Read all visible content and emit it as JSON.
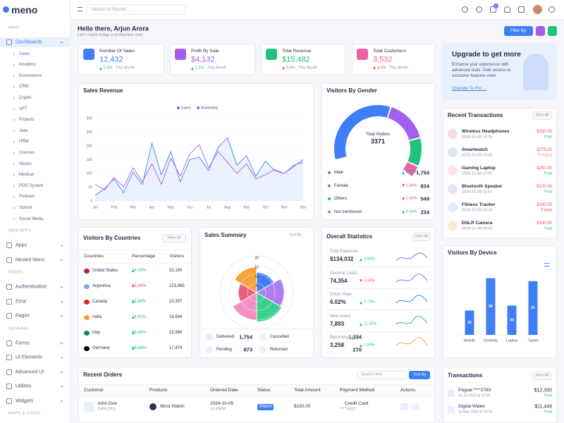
{
  "sidebar": {
    "logo": "meno",
    "sections": [
      {
        "label": "MAIN",
        "items": [
          "Dashboards"
        ],
        "subitems": [
          "Sales",
          "Analytics",
          "Ecommerce",
          "CRM",
          "Crypto",
          "NFT",
          "Projects",
          "Jobs",
          "HRM",
          "Courses",
          "Stocks",
          "Medical",
          "POS System",
          "Podcast",
          "School",
          "Social Media"
        ]
      },
      {
        "label": "WEB APPS",
        "items": [
          "Apps",
          "Nested Menu"
        ]
      },
      {
        "label": "PAGES",
        "items": [
          "Authentication",
          "Error",
          "Pages"
        ]
      },
      {
        "label": "GENERAL",
        "items": [
          "Forms",
          "UI Elements",
          "Advanced UI",
          "Utilities",
          "Widgets"
        ]
      },
      {
        "label": "MAPS & ICONS",
        "items": []
      }
    ]
  },
  "header": {
    "search_placeholder": "Search for Results...",
    "badge": 4
  },
  "welcome": {
    "title": "Hello there, Arjun Arora",
    "subtitle": "Let's make today a productive one!",
    "filter": "Filter By"
  },
  "stats": [
    {
      "label": "Number Of Sales",
      "value": "12,432",
      "change": "2.5%",
      "trend": "up",
      "period": "This Month",
      "color": "#3f7ff6"
    },
    {
      "label": "Profit By Sale",
      "value": "$4,132",
      "change": "1.5%",
      "trend": "up",
      "period": "This Month",
      "color": "#a45ef2"
    },
    {
      "label": "Total Revenue",
      "value": "$15,482",
      "change": "3.4%",
      "trend": "down",
      "period": "This Month",
      "color": "#21c27d"
    },
    {
      "label": "Total Customers",
      "value": "3,532",
      "change": "4.5%",
      "trend": "down",
      "period": "This Month",
      "color": "#ef5fa4"
    }
  ],
  "upgrade": {
    "title": "Upgrade to get more",
    "text": "Enhance your experience with advanced tools. Gain access to exclusive features now!",
    "link": "Upgrade To Pro →"
  },
  "chart_data": [
    {
      "type": "line",
      "title": "Sales Revenue",
      "x": [
        0,
        0.5,
        1,
        1.5,
        2,
        2.5,
        3,
        3.5,
        4,
        4.5,
        5,
        5.5,
        6,
        6.5,
        7,
        7.5,
        8,
        8.5,
        9,
        9.5,
        10,
        10.5,
        11
      ],
      "series": [
        {
          "name": "Sales",
          "color": "#3f7ff6",
          "fill": true,
          "values": [
            20,
            45,
            80,
            30,
            105,
            60,
            210,
            95,
            180,
            70,
            150,
            160,
            110,
            195,
            230,
            130,
            165,
            90,
            145,
            110,
            100,
            125,
            150
          ]
        },
        {
          "name": "Marketing",
          "color": "#a45ef2",
          "values": [
            60,
            40,
            85,
            50,
            120,
            70,
            135,
            60,
            155,
            90,
            170,
            205,
            120,
            180,
            140,
            100,
            135,
            80,
            95,
            115,
            100,
            130,
            140
          ]
        }
      ],
      "xlim": [
        0,
        11
      ],
      "xticks": [
        {
          "value": 0,
          "label": "Jan"
        },
        {
          "value": 1,
          "label": "Feb"
        },
        {
          "value": 2,
          "label": "Mar"
        },
        {
          "value": 3,
          "label": "Apr"
        },
        {
          "value": 4,
          "label": "May"
        },
        {
          "value": 5,
          "label": "Jun"
        },
        {
          "value": 6,
          "label": "Jul"
        },
        {
          "value": 7,
          "label": "Aug"
        },
        {
          "value": 8,
          "label": "Sep"
        },
        {
          "value": 9,
          "label": "Oct"
        },
        {
          "value": 10,
          "label": "Nov"
        },
        {
          "value": 11,
          "label": "Dec"
        }
      ],
      "ylim": [
        0,
        300
      ],
      "yticks": [
        0,
        50,
        100,
        150,
        200,
        250,
        300
      ],
      "grid": true
    },
    {
      "type": "donut",
      "title": "Visitors By Gender",
      "center_label": "Total Visitors",
      "total": 3371,
      "categories": [
        "Male",
        "Female",
        "Others",
        "Not mentioned"
      ],
      "values": [
        1754,
        834,
        549,
        234
      ],
      "value_labels": [
        "1,754",
        "834",
        "549",
        "234"
      ],
      "changes": [
        "0.75%",
        "1.64%",
        "2.64%",
        "0.64%"
      ],
      "trends": [
        "up",
        "down",
        "down",
        "up"
      ],
      "colors": [
        "#3f7ff6",
        "#a45ef2",
        "#21c27d",
        "#ef5fa4"
      ]
    },
    {
      "type": "polar",
      "title": "Sales Summary",
      "action": "Sort By",
      "values": [
        11,
        15,
        16,
        15,
        10,
        14
      ],
      "colors": [
        "#3f7ff6",
        "#b07cf5",
        "#3ad18f",
        "#f48fc4",
        "#e9607d",
        "#f7a23b"
      ],
      "rlim": [
        0,
        20
      ],
      "rticks": [
        5,
        10,
        15,
        20
      ],
      "statuses": [
        {
          "label": "Delivered",
          "value": "1,754"
        },
        {
          "label": "Cancelled",
          "value": "1,234"
        },
        {
          "label": "Pending",
          "value": "873"
        },
        {
          "label": "Returned",
          "value": "270"
        }
      ]
    },
    {
      "type": "bar",
      "title": "Visitors By Device",
      "categories": [
        "Mobile",
        "Desktop",
        "Laptop",
        "Tablet"
      ],
      "values": [
        25,
        58,
        30,
        55
      ],
      "color": "#3f7ff6",
      "ylim": [
        0,
        70
      ]
    }
  ],
  "countries": {
    "title": "Visitors By Countries",
    "view_all": "View All",
    "columns": [
      "Countries",
      "Percentage",
      "Visitors"
    ],
    "rows": [
      {
        "name": "United States",
        "percentage": "24.23%",
        "trend": "up",
        "visitors": "32,190"
      },
      {
        "name": "Argentina",
        "percentage": "12.45%",
        "trend": "down",
        "visitors": "123,985"
      },
      {
        "name": "Canada",
        "percentage": "06.64%",
        "trend": "up",
        "visitors": "10,397"
      },
      {
        "name": "India",
        "percentage": "14.42%",
        "trend": "up",
        "visitors": "18,694"
      },
      {
        "name": "Italy",
        "percentage": "06.64%",
        "trend": "up",
        "visitors": "15,386"
      },
      {
        "name": "Germany",
        "percentage": "06.64%",
        "trend": "up",
        "visitors": "17,479"
      }
    ]
  },
  "overall": {
    "title": "Overall Statistics",
    "view_all": "View All",
    "rows": [
      {
        "label": "Total Expenses",
        "value": "$134,032",
        "change": "0.65%",
        "trend": "up"
      },
      {
        "label": "General Leads",
        "value": "74,354",
        "change": "3.65%",
        "trend": "down"
      },
      {
        "label": "Churn Rate",
        "value": "6.02%",
        "change": "0.72%",
        "trend": "up"
      },
      {
        "label": "New Users",
        "value": "7,893",
        "change": "11.05%",
        "trend": "up"
      },
      {
        "label": "Returning Users",
        "value": "3,258",
        "change": "1.69%",
        "trend": "up"
      }
    ]
  },
  "recent_transactions": {
    "title": "Recent Transactions",
    "view_all": "View All",
    "rows": [
      {
        "name": "Wireless Headphones",
        "date": "2024-10-08 14:35",
        "amount": "$150.00",
        "status": "Paid",
        "status_color": "#21c27d"
      },
      {
        "name": "Smartwatch",
        "date": "2024-10-08 13:20",
        "amount": "$275.00",
        "status": "Pending",
        "status_color": "#f7a23b"
      },
      {
        "name": "Gaming Laptop",
        "date": "2024-10-08 12:05",
        "amount": "$250.00",
        "status": "Paid",
        "status_color": "#21c27d"
      },
      {
        "name": "Bluetooth Speaker",
        "date": "2024-10-08 11:50",
        "amount": "$120.00",
        "status": "Paid",
        "status_color": "#21c27d"
      },
      {
        "name": "Fitness Tracker",
        "date": "2024-10-08 10:30",
        "amount": "$180.00",
        "status": "Failed",
        "status_color": "#f24a5c"
      },
      {
        "name": "DSLR Camera",
        "date": "2024-10-08 09:15",
        "amount": "$100.00",
        "status": "Paid",
        "status_color": "#21c27d"
      }
    ]
  },
  "recent_orders": {
    "title": "Recent Orders",
    "search": "Search Here",
    "sort": "Sort By",
    "columns": [
      "Customer",
      "Products",
      "Ordered Date",
      "Status",
      "Total Amount",
      "Payment Method",
      "Actions"
    ],
    "rows": [
      {
        "customer": "John Doe",
        "id": "#SPK1001",
        "product": "Wrist Watch",
        "date": "2024-10-05",
        "time": "12:45PM",
        "status": "Shipped",
        "amount": "$150.00",
        "payment": "Credit Card",
        "card": "**** 6010"
      }
    ]
  },
  "transactions": {
    "title": "Transactions",
    "view_all": "View All",
    "rows": [
      {
        "name": "Paypal ****2783",
        "date": "24 Jul 2024 at 10:30",
        "amount": "$12,300",
        "status": "Paid"
      },
      {
        "name": "Digital Wallet",
        "date": "13 May 2024 at 10:30",
        "amount": "$11,449",
        "status": "Paid"
      }
    ]
  }
}
